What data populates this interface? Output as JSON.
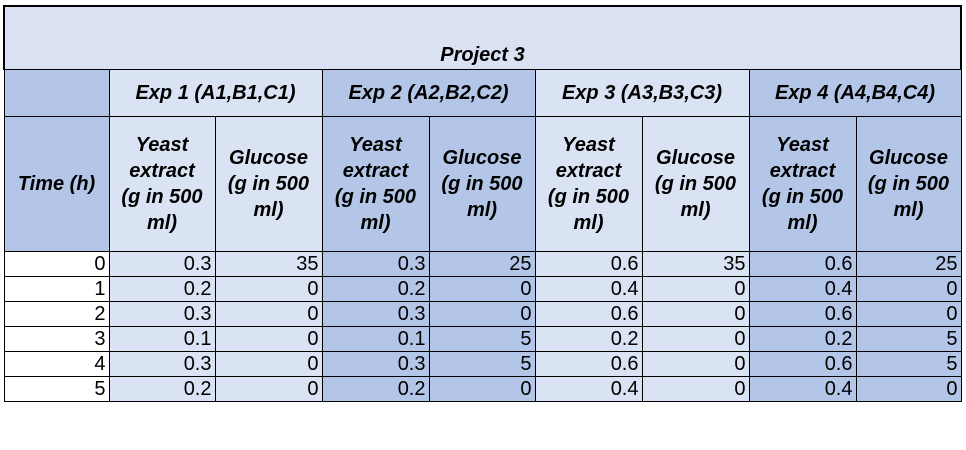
{
  "title": "Project 3",
  "time_header": "Time (h)",
  "experiments": [
    {
      "label": "Exp 1 (A1,B1,C1)"
    },
    {
      "label": "Exp 2 (A2,B2,C2)"
    },
    {
      "label": "Exp 3 (A3,B3,C3)"
    },
    {
      "label": "Exp 4 (A4,B4,C4)"
    }
  ],
  "sub_headers": {
    "yeast": [
      "Yeast",
      "extract",
      "(g in 500",
      "ml)"
    ],
    "glucose": [
      "Glucose",
      "(g in 500",
      "ml)"
    ]
  },
  "rows": [
    {
      "time": "0",
      "vals": [
        "0.3",
        "35",
        "0.3",
        "25",
        "0.6",
        "35",
        "0.6",
        "25"
      ]
    },
    {
      "time": "1",
      "vals": [
        "0.2",
        "0",
        "0.2",
        "0",
        "0.4",
        "0",
        "0.4",
        "0"
      ]
    },
    {
      "time": "2",
      "vals": [
        "0.3",
        "0",
        "0.3",
        "0",
        "0.6",
        "0",
        "0.6",
        "0"
      ]
    },
    {
      "time": "3",
      "vals": [
        "0.1",
        "0",
        "0.1",
        "5",
        "0.2",
        "0",
        "0.2",
        "5"
      ]
    },
    {
      "time": "4",
      "vals": [
        "0.3",
        "0",
        "0.3",
        "5",
        "0.6",
        "0",
        "0.6",
        "5"
      ]
    },
    {
      "time": "5",
      "vals": [
        "0.2",
        "0",
        "0.2",
        "0",
        "0.4",
        "0",
        "0.4",
        "0"
      ]
    }
  ],
  "colors": {
    "header_light": "#d9e1f2",
    "header_dark": "#b4c6e7",
    "cell_light": "#dae3f3",
    "grid": "#000000"
  }
}
